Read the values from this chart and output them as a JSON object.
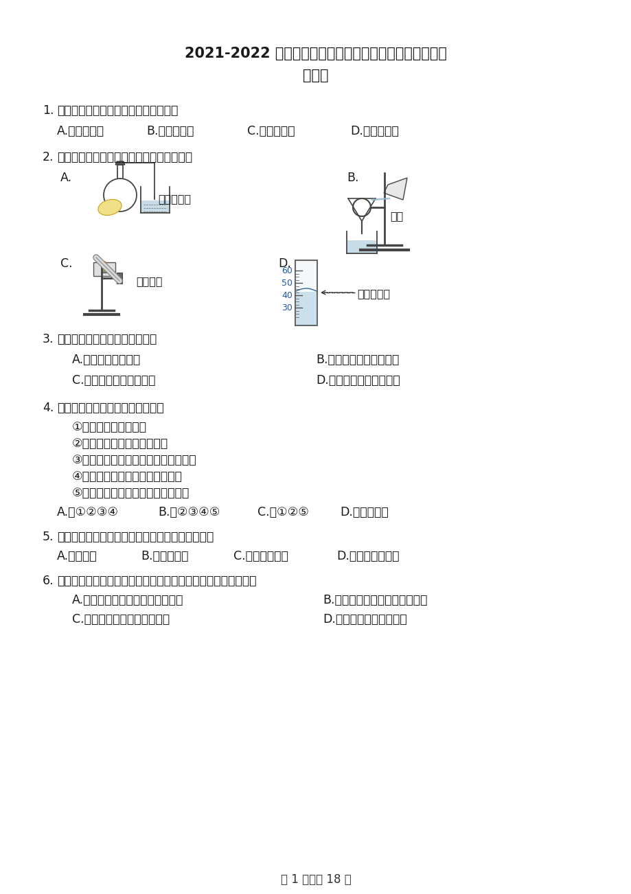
{
  "title_line1": "2021-2022 学年河南省周口市西华县九年级（上）期末化",
  "title_line2": "学试卷",
  "bg_color": "#ffffff",
  "text_color": "#1a1a1a",
  "footer": "第 1 页，共 18 页",
  "q1_text": "1.　下列过程中包含化学变化的是（　）",
  "q1_opts": [
    "A.　滴水成冰",
    "B.　苹果榨汁",
    "C.　菜刀生锈",
    "D.　电灯发光"
  ],
  "q2_text": "2.　下列图示的基本实验操作正确的是（　）",
  "q2_imgA": "A.",
  "q2_descA": "检查气密性",
  "q2_imgB": "B.",
  "q2_descB": "过滤",
  "q2_imgC": "C.",
  "q2_descC": "加热液体",
  "q2_imgD": "D.",
  "q2_descD": "读液体体积",
  "q3_text": "3.　造成酸雨的主要物质是（　）",
  "q3_optA": "A.　甲烷和一氧化碳",
  "q3_optB": "B.　二氧化硫和一氧化碳",
  "q3_optC": "C.　一氧化碳和二氧化碳",
  "q3_optD": "D.　二氧化硫和二氧化氮",
  "q4_text": "4.　下列关于水的说法确的是（　）",
  "q4_sub1": "①水是化合物、氧化物",
  "q4_sub2": "②加热煮永可以降低水的硬度",
  "q4_sub3": "③水汽化时体积增大是因为水分子变大",
  "q4_sub4": "④在净水过程中明矾作消毒杀菌剂",
  "q4_sub5": "⑤电解水的实验可证明水的元素组成",
  "q4_optA": "A.　①②③④",
  "q4_optB": "B.　②③④⑤",
  "q4_optC": "C.　①②⑤",
  "q4_optD": "D.　全部正确",
  "q5_text": "5.　下列各组物质中，都由分子构成的一组是（　）",
  "q5_optA": "A.　铁、汞",
  "q5_optB": "B.　水、干冰",
  "q5_optC": "C.　氨、金冈石",
  "q5_optD": "D.　氢气、氯化钓",
  "q6_text": "6.　下列各组物质，按混合物、化合物、单质顺序排列的是（　）",
  "q6_optA": "A.　矿泉水、五氧化二磷、液态氧",
  "q6_optB": "B.　高锰酸鷨、二氧化锰、氮气",
  "q6_optC": "C.　洁净的空气、氯化钓、水",
  "q6_optD": "D.　大理石、臭氧、干冰"
}
